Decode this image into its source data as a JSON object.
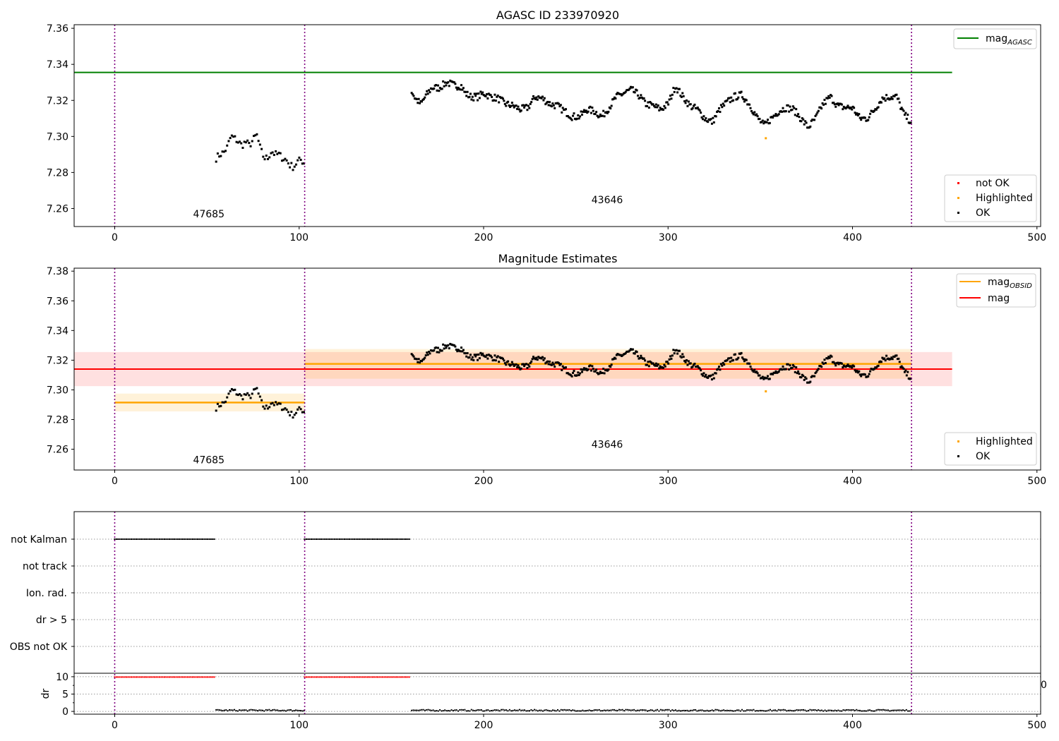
{
  "figure": {
    "title": "AGASC ID 233970920"
  },
  "chart_data": [
    {
      "type": "scatter",
      "title": "AGASC ID 233970920",
      "xlim": [
        -22,
        502
      ],
      "ylim": [
        7.25,
        7.362
      ],
      "xticks": [
        0,
        100,
        200,
        300,
        400,
        500
      ],
      "yticks": [
        7.26,
        7.28,
        7.3,
        7.32,
        7.34,
        7.36
      ],
      "obsid_boundaries": [
        0,
        103,
        432
      ],
      "obsid_labels": [
        {
          "text": "47685",
          "x": 51,
          "y": 7.255
        },
        {
          "text": "43646",
          "x": 267,
          "y": 7.263
        }
      ],
      "lines": [
        {
          "name": "mag_AGASC",
          "color": "#008000",
          "x": [
            0,
            454
          ],
          "y": 7.3355
        }
      ],
      "highlighted": [
        {
          "x": 353,
          "y": 7.299
        }
      ],
      "legend_lines": [
        {
          "label": "mag",
          "sub": "AGASC",
          "color": "#008000"
        }
      ],
      "legend_points": [
        {
          "label": "not OK",
          "color": "#ff0000"
        },
        {
          "label": "Highlighted",
          "color": "#ffa500"
        },
        {
          "label": "OK",
          "color": "#000000"
        }
      ]
    },
    {
      "type": "scatter",
      "title": "Magnitude Estimates",
      "xlim": [
        -22,
        502
      ],
      "ylim": [
        7.246,
        7.382
      ],
      "xticks": [
        0,
        100,
        200,
        300,
        400,
        500
      ],
      "yticks": [
        7.26,
        7.28,
        7.3,
        7.32,
        7.34,
        7.36,
        7.38
      ],
      "obsid_boundaries": [
        0,
        103,
        432
      ],
      "obsid_labels": [
        {
          "text": "47685",
          "x": 51,
          "y": 7.2505
        },
        {
          "text": "43646",
          "x": 267,
          "y": 7.261
        }
      ],
      "mag": {
        "value": 7.314,
        "band": [
          7.3025,
          7.3255
        ],
        "x": [
          0,
          454
        ],
        "color": "#ff0000"
      },
      "mag_obsid": [
        {
          "x": [
            0,
            103
          ],
          "value": 7.2915,
          "band": [
            7.2855,
            7.2975
          ]
        },
        {
          "x": [
            103,
            432
          ],
          "value": 7.3175,
          "band": [
            7.3075,
            7.3275
          ]
        }
      ],
      "highlighted": [
        {
          "x": 353,
          "y": 7.299
        }
      ],
      "legend_lines": [
        {
          "label": "mag",
          "sub": "OBSID",
          "color": "#ffa500"
        },
        {
          "label": "mag",
          "sub": "",
          "color": "#ff0000"
        }
      ],
      "legend_points": [
        {
          "label": "Highlighted",
          "color": "#ffa500"
        },
        {
          "label": "OK",
          "color": "#000000"
        }
      ]
    },
    {
      "type": "scatter",
      "title": "",
      "xlim": [
        -22,
        502
      ],
      "categories": [
        "not Kalman",
        "not track",
        "Ion. rad.",
        "dr > 5",
        "OBS not OK"
      ],
      "flag_ranges": [
        {
          "category": "not Kalman",
          "segments": [
            [
              0,
              54
            ],
            [
              103,
              160
            ]
          ]
        }
      ],
      "dr": {
        "ylabel": "dr",
        "yticks": [
          0,
          5,
          10
        ],
        "ylim": [
          -0.8,
          11
        ],
        "red_segments": [
          [
            0,
            54
          ],
          [
            103,
            160
          ]
        ],
        "red_value": 9.9,
        "ok_segments": [
          [
            55,
            103
          ],
          [
            161,
            432
          ]
        ],
        "ok_value": 0.3
      },
      "stray_tick": "0"
    }
  ],
  "samples": {
    "segment_1": {
      "x_range": [
        55,
        103
      ],
      "anchors": [
        [
          55,
          7.288
        ],
        [
          57,
          7.29
        ],
        [
          59,
          7.291
        ],
        [
          61,
          7.294
        ],
        [
          63,
          7.3
        ],
        [
          65,
          7.299
        ],
        [
          67,
          7.297
        ],
        [
          69,
          7.295
        ],
        [
          71,
          7.297
        ],
        [
          73,
          7.295
        ],
        [
          75,
          7.298
        ],
        [
          77,
          7.301
        ],
        [
          79,
          7.293
        ],
        [
          81,
          7.288
        ],
        [
          83,
          7.288
        ],
        [
          85,
          7.292
        ],
        [
          87,
          7.29
        ],
        [
          89,
          7.29
        ],
        [
          91,
          7.288
        ],
        [
          93,
          7.287
        ],
        [
          95,
          7.284
        ],
        [
          97,
          7.283
        ],
        [
          99,
          7.286
        ],
        [
          101,
          7.287
        ],
        [
          103,
          7.285
        ]
      ],
      "step": 0.85
    },
    "segment_2": {
      "x_range": [
        161,
        432
      ],
      "anchors": [
        [
          161,
          7.325
        ],
        [
          163,
          7.321
        ],
        [
          166,
          7.318
        ],
        [
          169,
          7.323
        ],
        [
          172,
          7.327
        ],
        [
          176,
          7.327
        ],
        [
          180,
          7.33
        ],
        [
          185,
          7.328
        ],
        [
          188,
          7.328
        ],
        [
          190,
          7.324
        ],
        [
          193,
          7.322
        ],
        [
          197,
          7.322
        ],
        [
          200,
          7.324
        ],
        [
          204,
          7.322
        ],
        [
          208,
          7.321
        ],
        [
          212,
          7.318
        ],
        [
          216,
          7.317
        ],
        [
          220,
          7.315
        ],
        [
          224,
          7.316
        ],
        [
          228,
          7.322
        ],
        [
          232,
          7.321
        ],
        [
          236,
          7.318
        ],
        [
          240,
          7.317
        ],
        [
          244,
          7.314
        ],
        [
          248,
          7.311
        ],
        [
          252,
          7.311
        ],
        [
          256,
          7.315
        ],
        [
          260,
          7.314
        ],
        [
          264,
          7.311
        ],
        [
          268,
          7.316
        ],
        [
          272,
          7.322
        ],
        [
          276,
          7.324
        ],
        [
          280,
          7.326
        ],
        [
          284,
          7.323
        ],
        [
          288,
          7.318
        ],
        [
          292,
          7.317
        ],
        [
          296,
          7.315
        ],
        [
          300,
          7.318
        ],
        [
          304,
          7.328
        ],
        [
          308,
          7.322
        ],
        [
          312,
          7.317
        ],
        [
          316,
          7.315
        ],
        [
          320,
          7.31
        ],
        [
          324,
          7.308
        ],
        [
          328,
          7.315
        ],
        [
          332,
          7.319
        ],
        [
          336,
          7.322
        ],
        [
          340,
          7.323
        ],
        [
          344,
          7.318
        ],
        [
          348,
          7.311
        ],
        [
          352,
          7.306
        ],
        [
          356,
          7.31
        ],
        [
          360,
          7.314
        ],
        [
          364,
          7.316
        ],
        [
          368,
          7.315
        ],
        [
          372,
          7.31
        ],
        [
          376,
          7.305
        ],
        [
          380,
          7.31
        ],
        [
          384,
          7.318
        ],
        [
          388,
          7.322
        ],
        [
          392,
          7.317
        ],
        [
          396,
          7.316
        ],
        [
          400,
          7.316
        ],
        [
          404,
          7.31
        ],
        [
          408,
          7.31
        ],
        [
          412,
          7.315
        ],
        [
          416,
          7.321
        ],
        [
          420,
          7.322
        ],
        [
          424,
          7.322
        ],
        [
          428,
          7.312
        ],
        [
          432,
          7.308
        ]
      ],
      "step": 0.55
    }
  }
}
